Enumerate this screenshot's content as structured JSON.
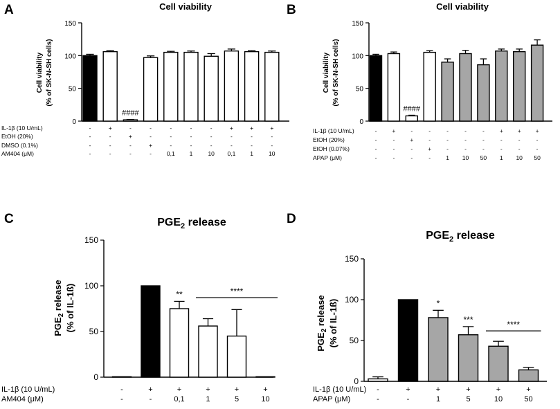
{
  "chart_data": [
    {
      "panel": "A",
      "type": "bar",
      "title": "Cell viability",
      "ylabel": [
        "Cell viability",
        "(% of SK-N-SH cells)"
      ],
      "ylim": [
        0,
        150
      ],
      "yticks": [
        "0",
        "50",
        "100",
        "150"
      ],
      "values": [
        100,
        106,
        2,
        97,
        105,
        105,
        99,
        107,
        106,
        105
      ],
      "errors": [
        2,
        1.5,
        0.5,
        2.5,
        1.5,
        2,
        4,
        3,
        1.5,
        2
      ],
      "fills": [
        "#000000",
        "#ffffff",
        "#ffffff",
        "#ffffff",
        "#ffffff",
        "#ffffff",
        "#ffffff",
        "#ffffff",
        "#ffffff",
        "#ffffff"
      ],
      "bar_annotations": [
        {
          "bar": 2,
          "text": "####"
        }
      ],
      "conditions": [
        {
          "label": "IL-1β (10 U/mL)",
          "values": [
            "-",
            "+",
            "-",
            "-",
            "-",
            "-",
            "-",
            "+",
            "+",
            "+"
          ]
        },
        {
          "label": "EtOH (20%)",
          "values": [
            "-",
            "-",
            "+",
            "-",
            "-",
            "-",
            "-",
            "-",
            "-",
            "-"
          ]
        },
        {
          "label": "DMSO (0.1%)",
          "values": [
            "-",
            "-",
            "-",
            "+",
            "-",
            "-",
            "-",
            "-",
            "-",
            "-"
          ]
        },
        {
          "label": "AM404 (μM)",
          "values": [
            "-",
            "-",
            "-",
            "-",
            "0,1",
            "1",
            "10",
            "0,1",
            "1",
            "10"
          ]
        }
      ]
    },
    {
      "panel": "B",
      "type": "bar",
      "title": "Cell viability",
      "ylabel": [
        "Cell viability",
        "(% of SK-N-SH cells)"
      ],
      "ylim": [
        0,
        150
      ],
      "yticks": [
        "0",
        "50",
        "100",
        "150"
      ],
      "values": [
        100,
        103,
        8,
        105,
        90,
        103,
        86,
        107,
        106,
        116
      ],
      "errors": [
        2,
        2.5,
        1,
        2.5,
        5,
        5,
        9,
        3,
        4,
        8
      ],
      "fills": [
        "#000000",
        "#ffffff",
        "#ffffff",
        "#ffffff",
        "#a6a6a6",
        "#a6a6a6",
        "#a6a6a6",
        "#a6a6a6",
        "#a6a6a6",
        "#a6a6a6"
      ],
      "bar_annotations": [
        {
          "bar": 2,
          "text": "####"
        }
      ],
      "conditions": [
        {
          "label": "IL-1β (10 U/mL)",
          "values": [
            "-",
            "+",
            "-",
            "-",
            "-",
            "-",
            "-",
            "+",
            "+",
            "+"
          ]
        },
        {
          "label": "EtOH (20%)",
          "values": [
            "-",
            "-",
            "+",
            "-",
            "-",
            "-",
            "-",
            "-",
            "-",
            "-"
          ]
        },
        {
          "label": "EtOH (0.07%)",
          "values": [
            "-",
            "-",
            "-",
            "+",
            "-",
            "-",
            "-",
            "-",
            "-",
            "-"
          ]
        },
        {
          "label": "APAP (μM)",
          "values": [
            "-",
            "-",
            "-",
            "-",
            "1",
            "10",
            "50",
            "1",
            "10",
            "50"
          ]
        }
      ]
    },
    {
      "panel": "C",
      "type": "bar",
      "title_main": "PGE",
      "title_sub": "2",
      "title_rest": " release",
      "ylabel_line1_main": "PGE",
      "ylabel_line1_sub": "2",
      "ylabel_line1_rest": " release",
      "ylabel_line2": "(% of IL-1ß)",
      "ylim": [
        0,
        150
      ],
      "yticks": [
        "0",
        "50",
        "100",
        "150"
      ],
      "values": [
        0.5,
        100,
        75,
        56,
        45,
        0.5
      ],
      "errors": [
        0,
        0,
        8,
        8,
        29,
        0
      ],
      "fills": [
        "#ffffff",
        "#000000",
        "#ffffff",
        "#ffffff",
        "#ffffff",
        "#ffffff"
      ],
      "bar_annotations": [
        {
          "bar": 2,
          "text": "**"
        }
      ],
      "bracket": {
        "from": 3,
        "to": 5,
        "text": "****"
      },
      "conditions": [
        {
          "label": "IL-1β (10 U/mL)",
          "values": [
            "-",
            "+",
            "+",
            "+",
            "+",
            "+"
          ]
        },
        {
          "label": "AM404 (μM)",
          "values": [
            "-",
            "-",
            "0,1",
            "1",
            "5",
            "10"
          ]
        }
      ]
    },
    {
      "panel": "D",
      "type": "bar",
      "title_main": "PGE",
      "title_sub": "2",
      "title_rest": " release",
      "ylabel_line1_main": "PGE",
      "ylabel_line1_sub": "2",
      "ylabel_line1_rest": " release",
      "ylabel_line2": "(% of IL-1ß)",
      "ylim": [
        0,
        150
      ],
      "yticks": [
        "0",
        "50",
        "100",
        "150"
      ],
      "values": [
        3,
        100,
        78,
        57,
        43,
        14
      ],
      "errors": [
        2.5,
        0,
        9,
        10,
        6,
        3
      ],
      "fills": [
        "#ffffff",
        "#000000",
        "#a6a6a6",
        "#a6a6a6",
        "#a6a6a6",
        "#a6a6a6"
      ],
      "bar_annotations": [
        {
          "bar": 2,
          "text": "*"
        },
        {
          "bar": 3,
          "text": "***"
        }
      ],
      "bracket": {
        "from": 4,
        "to": 5,
        "text": "****"
      },
      "conditions": [
        {
          "label": "IL-1β (10 U/mL)",
          "values": [
            "-",
            "+",
            "+",
            "+",
            "+",
            "+"
          ]
        },
        {
          "label": "APAP (μM)",
          "values": [
            "-",
            "-",
            "1",
            "5",
            "10",
            "50"
          ]
        }
      ]
    }
  ]
}
